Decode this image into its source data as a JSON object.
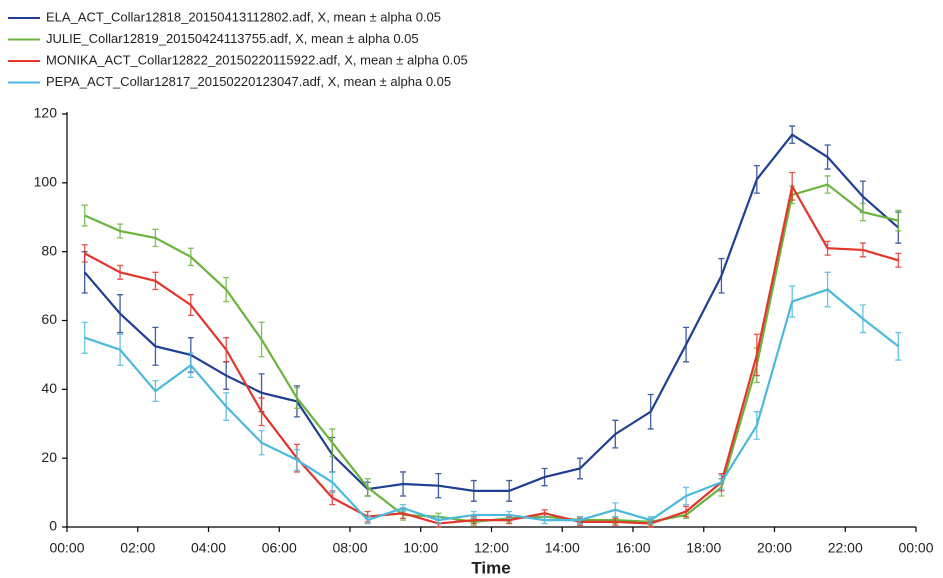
{
  "chart_data": {
    "type": "line",
    "xlabel": "Time",
    "x": [
      0.5,
      1.5,
      2.5,
      3.5,
      4.5,
      5.5,
      6.5,
      7.5,
      8.5,
      9.5,
      10.5,
      11.5,
      12.5,
      13.5,
      14.5,
      15.5,
      16.5,
      17.5,
      18.5,
      19.5,
      20.5,
      21.5,
      22.5,
      23.5
    ],
    "xlim": [
      0,
      24
    ],
    "xticks": [
      {
        "value": 0,
        "label": "00:00"
      },
      {
        "value": 2,
        "label": "02:00"
      },
      {
        "value": 4,
        "label": "04:00"
      },
      {
        "value": 6,
        "label": "06:00"
      },
      {
        "value": 8,
        "label": "08:00"
      },
      {
        "value": 10,
        "label": "10:00"
      },
      {
        "value": 12,
        "label": "12:00"
      },
      {
        "value": 14,
        "label": "14:00"
      },
      {
        "value": 16,
        "label": "16:00"
      },
      {
        "value": 18,
        "label": "18:00"
      },
      {
        "value": 20,
        "label": "20:00"
      },
      {
        "value": 22,
        "label": "22:00"
      },
      {
        "value": 24,
        "label": "00:00"
      }
    ],
    "ylim": [
      0,
      120
    ],
    "yticks": [
      0,
      20,
      40,
      60,
      80,
      100,
      120
    ],
    "series": [
      {
        "name": "ELA_ACT_Collar12818_20150413112802.adf, X, mean ± alpha 0.05",
        "color": "#1f3f93",
        "values": [
          74,
          62,
          52.5,
          50,
          44,
          39,
          36.5,
          21,
          11,
          12.5,
          12,
          10.5,
          10.5,
          14.5,
          17,
          27,
          33.5,
          53,
          73,
          101,
          114,
          107.5,
          96,
          87
        ],
        "errors": [
          6,
          5.5,
          5.5,
          5,
          4,
          5.5,
          4.5,
          5,
          2,
          3.5,
          3.5,
          3,
          3,
          2.5,
          3,
          4,
          5,
          5,
          5,
          4,
          2.5,
          3.5,
          4.5,
          4.5
        ]
      },
      {
        "name": "JULIE_Collar12819_20150424113755.adf, X, mean ± alpha 0.05",
        "color": "#6cb33e",
        "values": [
          90.5,
          86,
          84,
          78.5,
          69,
          54.5,
          37.5,
          24.5,
          11.5,
          3.5,
          3,
          1.5,
          2.5,
          3,
          2,
          2,
          1.5,
          3.5,
          11.5,
          47,
          96.5,
          99.5,
          91.5,
          89
        ],
        "errors": [
          3,
          2,
          2.5,
          2.5,
          3.5,
          5,
          3,
          4,
          2.5,
          1.5,
          1,
          1,
          1,
          1,
          1,
          1,
          1,
          1,
          2.5,
          5,
          2.5,
          2.5,
          2.5,
          3
        ]
      },
      {
        "name": "MONIKA_ACT_Collar12822_20150220115922.adf, X, mean ± alpha 0.05",
        "color": "#e2352b",
        "values": [
          79.5,
          74,
          71.5,
          64.5,
          51.5,
          33.5,
          20,
          8.5,
          3,
          4,
          1,
          2,
          2,
          4,
          1.5,
          1.5,
          1,
          4.5,
          13,
          50,
          99,
          81,
          80.5,
          77.5
        ],
        "errors": [
          2.5,
          2,
          2.5,
          3,
          3.5,
          4,
          4,
          2,
          1.5,
          1.5,
          1,
          1,
          1,
          1,
          1,
          1,
          1,
          1.5,
          2.5,
          6,
          4,
          2,
          2,
          2
        ]
      },
      {
        "name": "PEPA_ACT_Collar12817_20150220123047.adf, X, mean ± alpha 0.05",
        "color": "#4cb8dc",
        "values": [
          55,
          51.5,
          39.5,
          47,
          35,
          24.5,
          19.5,
          13,
          2,
          5.5,
          2,
          3.5,
          3.5,
          2,
          2,
          5,
          2,
          9,
          13,
          29.5,
          65.5,
          69,
          60.5,
          52.5
        ],
        "errors": [
          4.5,
          4.5,
          3,
          3.5,
          4,
          3.5,
          3,
          3,
          1,
          1,
          1,
          1,
          1,
          1,
          1,
          2,
          1,
          2.5,
          2,
          4,
          4.5,
          5,
          4,
          4
        ]
      }
    ]
  }
}
